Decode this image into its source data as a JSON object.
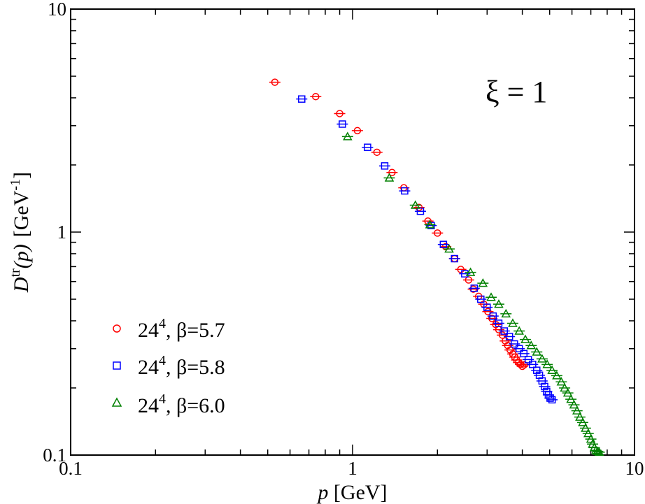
{
  "chart_data": {
    "type": "scatter",
    "xscale": "log",
    "yscale": "log",
    "xlim": [
      0.1,
      10
    ],
    "ylim": [
      0.1,
      10
    ],
    "xlabel": {
      "var": "p",
      "unit": "[GeV]"
    },
    "ylabel": {
      "var": "D",
      "sup": "tr",
      "arg": "(p)",
      "unit_open": "[GeV",
      "unit_sup": "-1",
      "unit_close": "]"
    },
    "xticks": [
      {
        "value": 0.1,
        "label": "0.1"
      },
      {
        "value": 1,
        "label": "1"
      },
      {
        "value": 10,
        "label": "10"
      }
    ],
    "yticks": [
      {
        "value": 0.1,
        "label": "0.1"
      },
      {
        "value": 1,
        "label": "1"
      },
      {
        "value": 10,
        "label": "10"
      }
    ],
    "annotation": "ξ = 1",
    "legend_position": "bottom-left",
    "series": [
      {
        "name": "24⁴, β=5.7",
        "label_base": "24",
        "label_sup": "4",
        "label_rest": ", β=5.7",
        "marker": "circle",
        "color": "#ff0000",
        "points": [
          [
            0.53,
            4.7
          ],
          [
            0.74,
            4.05
          ],
          [
            0.9,
            3.4
          ],
          [
            1.04,
            2.85
          ],
          [
            1.22,
            2.28
          ],
          [
            1.38,
            1.85
          ],
          [
            1.52,
            1.58
          ],
          [
            1.72,
            1.29
          ],
          [
            1.85,
            1.12
          ],
          [
            2.0,
            0.99
          ],
          [
            2.14,
            0.86
          ],
          [
            2.3,
            0.76
          ],
          [
            2.42,
            0.68
          ],
          [
            2.58,
            0.61
          ],
          [
            2.68,
            0.555
          ],
          [
            2.8,
            0.515
          ],
          [
            2.92,
            0.475
          ],
          [
            3.02,
            0.44
          ],
          [
            3.12,
            0.41
          ],
          [
            3.22,
            0.385
          ],
          [
            3.3,
            0.365
          ],
          [
            3.4,
            0.345
          ],
          [
            3.48,
            0.325
          ],
          [
            3.55,
            0.31
          ],
          [
            3.62,
            0.296
          ],
          [
            3.7,
            0.284
          ],
          [
            3.76,
            0.275
          ],
          [
            3.82,
            0.267
          ],
          [
            3.88,
            0.26
          ],
          [
            3.94,
            0.255
          ],
          [
            4.0,
            0.25
          ],
          [
            4.06,
            0.254
          ]
        ]
      },
      {
        "name": "24⁴, β=5.8",
        "label_base": "24",
        "label_sup": "4",
        "label_rest": ", β=5.8",
        "marker": "square",
        "color": "#0000ff",
        "points": [
          [
            0.66,
            3.95
          ],
          [
            0.92,
            3.05
          ],
          [
            1.13,
            2.4
          ],
          [
            1.3,
            1.98
          ],
          [
            1.53,
            1.53
          ],
          [
            1.74,
            1.24
          ],
          [
            1.9,
            1.07
          ],
          [
            2.1,
            0.88
          ],
          [
            2.3,
            0.76
          ],
          [
            2.5,
            0.65
          ],
          [
            2.7,
            0.56
          ],
          [
            2.85,
            0.5
          ],
          [
            3.0,
            0.46
          ],
          [
            3.15,
            0.42
          ],
          [
            3.3,
            0.39
          ],
          [
            3.45,
            0.36
          ],
          [
            3.6,
            0.34
          ],
          [
            3.75,
            0.315
          ],
          [
            3.9,
            0.3
          ],
          [
            4.05,
            0.285
          ],
          [
            4.2,
            0.268
          ],
          [
            4.35,
            0.255
          ],
          [
            4.5,
            0.24
          ],
          [
            4.6,
            0.228
          ],
          [
            4.7,
            0.215
          ],
          [
            4.8,
            0.203
          ],
          [
            4.88,
            0.193
          ],
          [
            4.95,
            0.186
          ],
          [
            5.02,
            0.18
          ],
          [
            5.1,
            0.177
          ]
        ]
      },
      {
        "name": "24⁴, β=6.0",
        "label_base": "24",
        "label_sup": "4",
        "label_rest": ", β=6.0",
        "marker": "triangle",
        "color": "#008000",
        "points": [
          [
            0.96,
            2.68
          ],
          [
            1.35,
            1.75
          ],
          [
            1.67,
            1.32
          ],
          [
            1.88,
            1.08
          ],
          [
            2.2,
            0.84
          ],
          [
            2.62,
            0.66
          ],
          [
            2.9,
            0.59
          ],
          [
            3.1,
            0.51
          ],
          [
            3.3,
            0.475
          ],
          [
            3.5,
            0.43
          ],
          [
            3.7,
            0.39
          ],
          [
            3.9,
            0.36
          ],
          [
            4.1,
            0.33
          ],
          [
            4.3,
            0.31
          ],
          [
            4.5,
            0.29
          ],
          [
            4.7,
            0.27
          ],
          [
            4.9,
            0.255
          ],
          [
            5.1,
            0.24
          ],
          [
            5.3,
            0.227
          ],
          [
            5.5,
            0.213
          ],
          [
            5.65,
            0.2
          ],
          [
            5.8,
            0.19
          ],
          [
            5.95,
            0.178
          ],
          [
            6.1,
            0.168
          ],
          [
            6.25,
            0.158
          ],
          [
            6.4,
            0.148
          ],
          [
            6.55,
            0.14
          ],
          [
            6.7,
            0.132
          ],
          [
            6.85,
            0.125
          ],
          [
            7.0,
            0.118
          ],
          [
            7.1,
            0.112
          ],
          [
            7.2,
            0.108
          ],
          [
            7.3,
            0.105
          ],
          [
            7.4,
            0.104
          ],
          [
            7.5,
            0.103
          ]
        ]
      }
    ]
  }
}
